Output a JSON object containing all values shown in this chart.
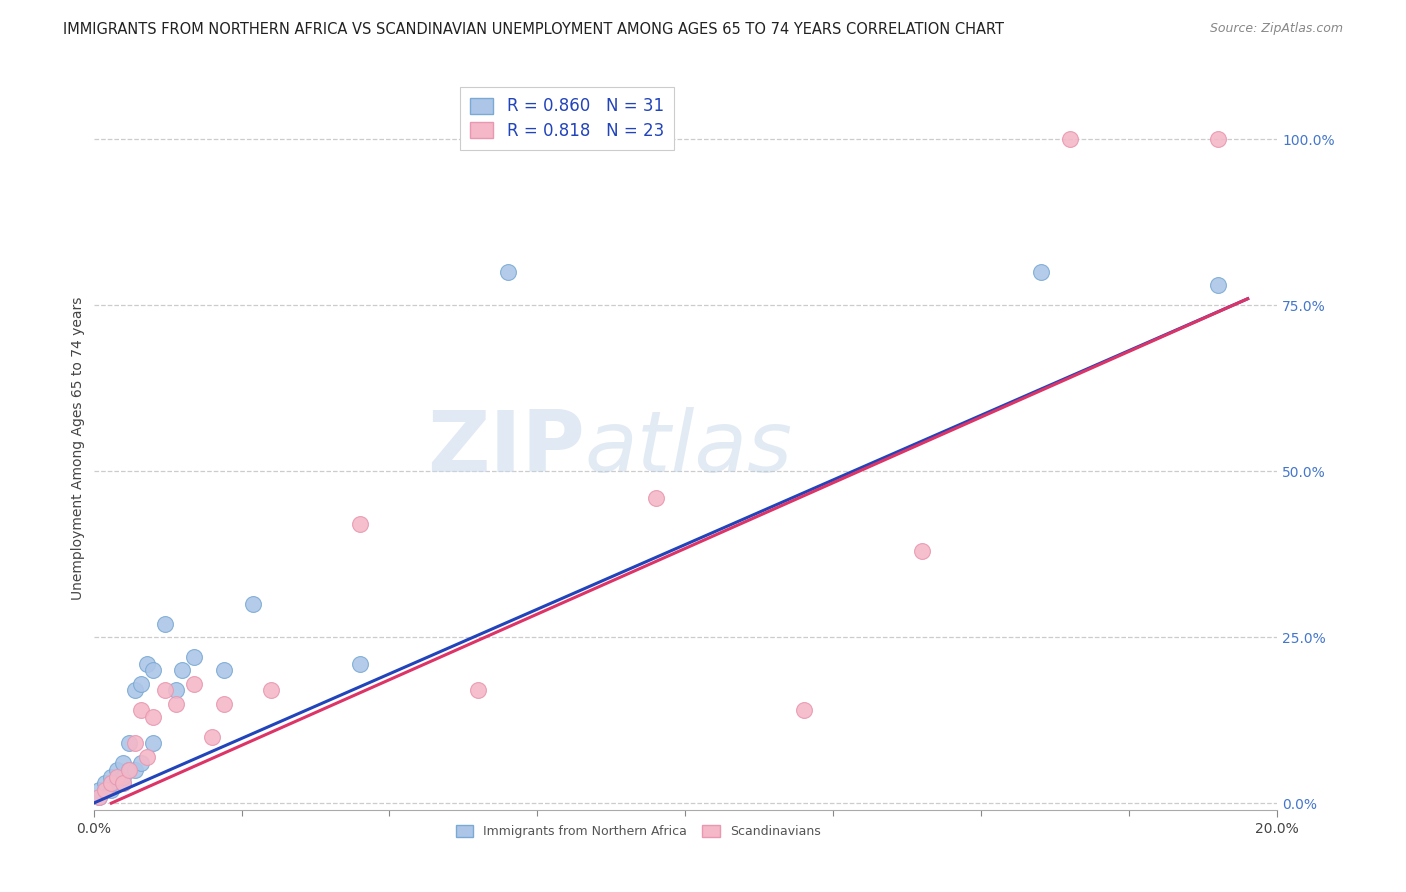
{
  "title": "IMMIGRANTS FROM NORTHERN AFRICA VS SCANDINAVIAN UNEMPLOYMENT AMONG AGES 65 TO 74 YEARS CORRELATION CHART",
  "source": "Source: ZipAtlas.com",
  "ylabel": "Unemployment Among Ages 65 to 74 years",
  "ytick_labels": [
    "0.0%",
    "25.0%",
    "50.0%",
    "75.0%",
    "100.0%"
  ],
  "ytick_values": [
    0.0,
    0.25,
    0.5,
    0.75,
    1.0
  ],
  "xlim": [
    0.0,
    0.2
  ],
  "ylim": [
    -0.01,
    1.08
  ],
  "legend_label_blue": "Immigrants from Northern Africa",
  "legend_label_pink": "Scandinavians",
  "blue_color": "#adc6e8",
  "pink_color": "#f4b8c8",
  "blue_edge_color": "#7aaad4",
  "pink_edge_color": "#e898b0",
  "blue_line_color": "#2244bb",
  "pink_line_color": "#dd3366",
  "watermark_zip": "ZIP",
  "watermark_atlas": "atlas",
  "blue_scatter_x": [
    0.001,
    0.001,
    0.002,
    0.002,
    0.003,
    0.003,
    0.003,
    0.004,
    0.004,
    0.005,
    0.005,
    0.005,
    0.006,
    0.006,
    0.007,
    0.007,
    0.008,
    0.008,
    0.009,
    0.01,
    0.01,
    0.012,
    0.014,
    0.015,
    0.017,
    0.022,
    0.027,
    0.045,
    0.07,
    0.16,
    0.19
  ],
  "blue_scatter_y": [
    0.01,
    0.02,
    0.02,
    0.03,
    0.02,
    0.03,
    0.04,
    0.03,
    0.05,
    0.03,
    0.04,
    0.06,
    0.05,
    0.09,
    0.05,
    0.17,
    0.06,
    0.18,
    0.21,
    0.09,
    0.2,
    0.27,
    0.17,
    0.2,
    0.22,
    0.2,
    0.3,
    0.21,
    0.8,
    0.8,
    0.78
  ],
  "pink_scatter_x": [
    0.001,
    0.002,
    0.003,
    0.004,
    0.005,
    0.006,
    0.007,
    0.008,
    0.009,
    0.01,
    0.012,
    0.014,
    0.017,
    0.02,
    0.022,
    0.03,
    0.045,
    0.065,
    0.095,
    0.12,
    0.14,
    0.165,
    0.19
  ],
  "pink_scatter_y": [
    0.01,
    0.02,
    0.03,
    0.04,
    0.03,
    0.05,
    0.09,
    0.14,
    0.07,
    0.13,
    0.17,
    0.15,
    0.18,
    0.1,
    0.15,
    0.17,
    0.42,
    0.17,
    0.46,
    0.14,
    0.38,
    1.0,
    1.0
  ],
  "blue_line_x": [
    0.0,
    0.195
  ],
  "blue_line_y": [
    0.0,
    0.76
  ],
  "pink_line_x": [
    0.003,
    0.195
  ],
  "pink_line_y": [
    0.0,
    0.76
  ],
  "title_fontsize": 10.5,
  "source_fontsize": 9,
  "axis_label_fontsize": 10,
  "tick_fontsize": 10,
  "legend_fontsize": 12
}
